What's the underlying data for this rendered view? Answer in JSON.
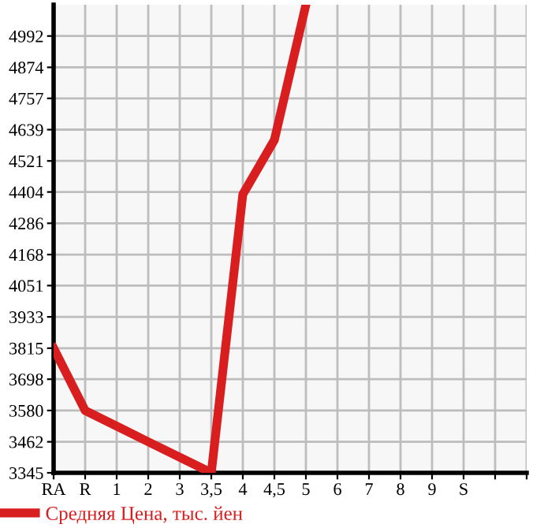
{
  "chart_data": {
    "type": "line",
    "categories": [
      "RA",
      "R",
      "1",
      "2",
      "3",
      "3,5",
      "4",
      "4,5",
      "5",
      "6",
      "7",
      "8",
      "9",
      "S",
      null,
      null
    ],
    "series": [
      {
        "name": "Средняя Цена, тыс. йен",
        "color": "#d81e1e",
        "values": [
          3815,
          3580,
          3521,
          3462,
          3404,
          3345,
          4395,
          4600,
          5110,
          null,
          null,
          null,
          null,
          null,
          null,
          null
        ]
      }
    ],
    "ylim": [
      3345,
      5110
    ],
    "yticks": [
      3345,
      3462,
      3580,
      3698,
      3815,
      3933,
      4051,
      4168,
      4286,
      4404,
      4521,
      4639,
      4757,
      4874,
      4992
    ],
    "grid": true,
    "legend": "bottom left",
    "marker": "none",
    "line_style": "solid"
  }
}
